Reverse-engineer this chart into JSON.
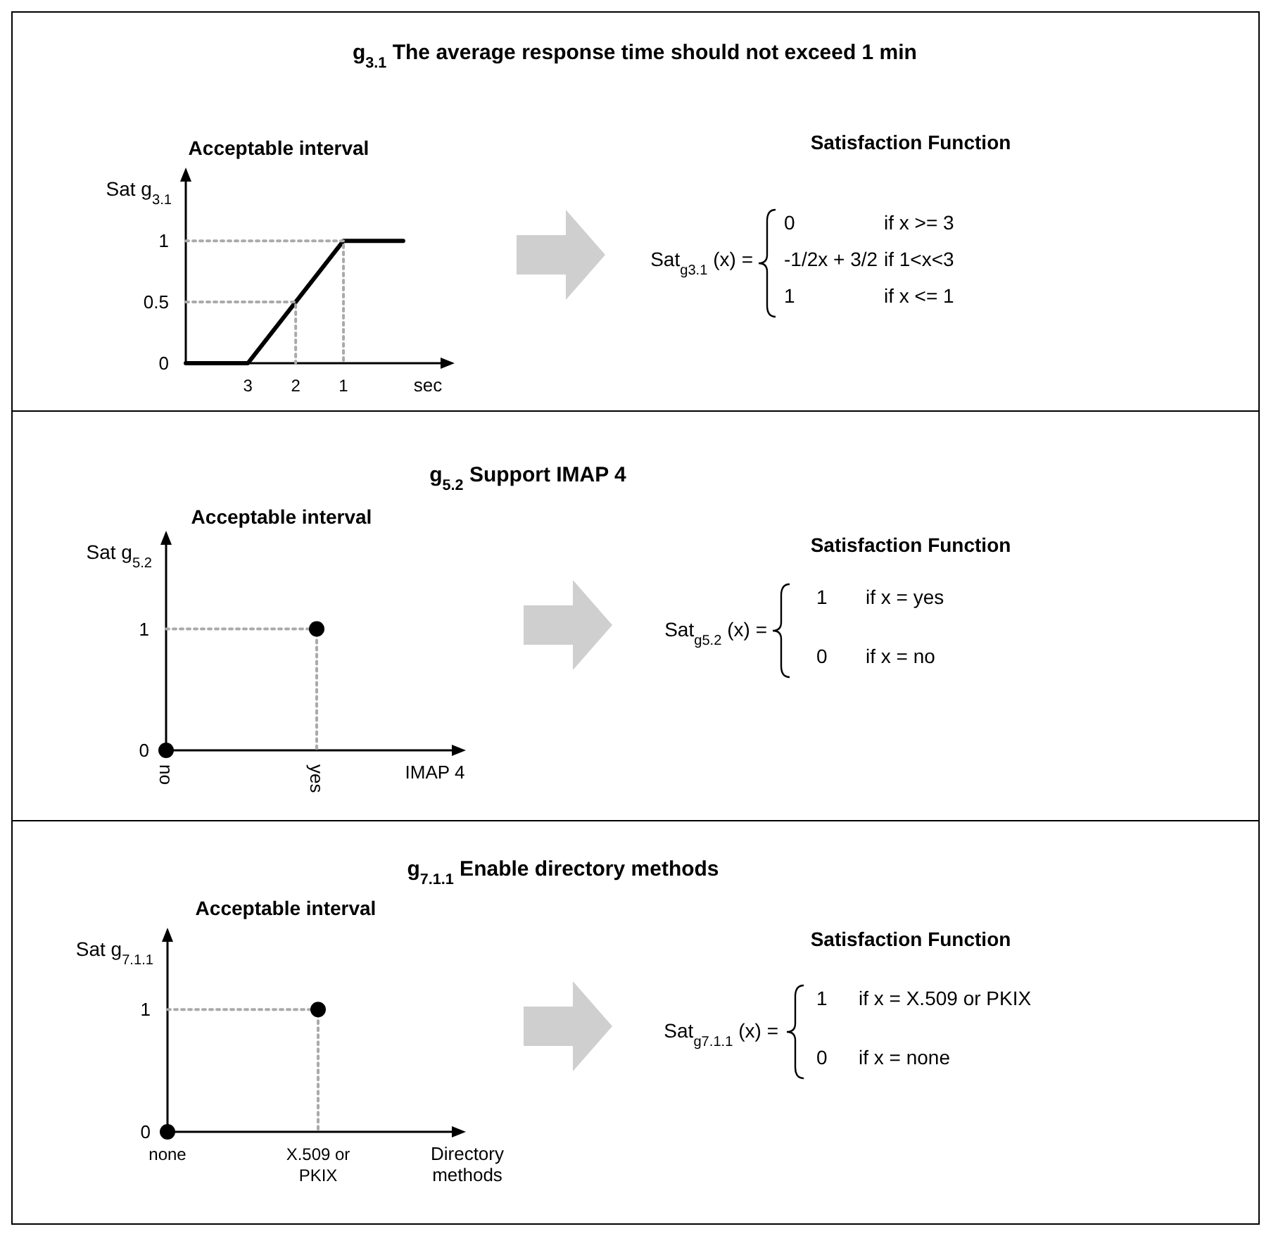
{
  "chart_data": [
    {
      "type": "line",
      "title": "g$_{3.1}$ The average response time should not exceed 1 min",
      "subtitle": "Acceptable interval",
      "ylabel": "Sat g$_{3.1}$",
      "xlabel": "sec",
      "xlim": [
        4.3,
        -1.15
      ],
      "xticks": [
        3,
        2,
        1
      ],
      "ylim": [
        0,
        1.53
      ],
      "yticks": [
        0,
        0.5,
        1
      ],
      "series": [
        {
          "color": "#000000",
          "x": [
            4.3,
            3,
            1,
            -0.25
          ],
          "values": [
            0,
            0,
            1,
            1
          ]
        },
        {
          "color": "#aaaaaa",
          "line_style": "dotted",
          "x": [
            4.3,
            1,
            1
          ],
          "values": [
            1,
            1,
            0
          ]
        },
        {
          "color": "#aaaaaa",
          "line_style": "dotted",
          "x": [
            4.3,
            2,
            2
          ],
          "values": [
            0.5,
            0.5,
            0
          ]
        }
      ],
      "annotations": [
        "Satisfaction Function",
        "Sat$_{g3.1}$ (x) =",
        "0",
        "if  x >= 3",
        "-1/2x + 3/2",
        "if  1<x<3",
        "1",
        "if  x <= 1"
      ]
    },
    {
      "type": "scatter",
      "title": "g$_{5.2}$ Support IMAP 4",
      "subtitle": "Acceptable interval",
      "ylabel": "Sat g$_{5.2}$",
      "xlabel": "IMAP 4",
      "categories": [
        "no",
        "yes"
      ],
      "ylim": [
        0,
        1.74
      ],
      "yticks": [
        0,
        1
      ],
      "series": [
        {
          "color": "#000000",
          "marker": "circle",
          "values": [
            0,
            1
          ]
        },
        {
          "type": "line",
          "color": "#aaaaaa",
          "line_style": "dotted",
          "x": [
            "no",
            "yes",
            "yes"
          ],
          "values": [
            1,
            1,
            0
          ]
        }
      ],
      "annotations": [
        "Satisfaction Function",
        "Sat$_{g5.2}$ (x) =",
        "1",
        "if  x = yes",
        "0",
        "if  x = no"
      ]
    },
    {
      "type": "scatter",
      "title": "g$_{7.1.1}$ Enable directory methods",
      "subtitle": "Acceptable interval",
      "ylabel": "Sat g$_{7.1.1}$",
      "xlabel": "Directory methods",
      "categories": [
        "none",
        "X.509 or PKIX"
      ],
      "ylim": [
        0,
        1.6
      ],
      "yticks": [
        0,
        1
      ],
      "series": [
        {
          "color": "#000000",
          "marker": "circle",
          "values": [
            0,
            1
          ]
        },
        {
          "type": "line",
          "color": "#aaaaaa",
          "line_style": "dotted",
          "x": [
            "none",
            "X.509 or PKIX",
            "X.509 or PKIX"
          ],
          "values": [
            1,
            1,
            0
          ]
        }
      ],
      "annotations": [
        "Satisfaction Function",
        "Sat$_{g7.1.1}$ (x) =",
        "1",
        "if  x = X.509 or PKIX",
        "0",
        "if  x = none"
      ]
    }
  ]
}
